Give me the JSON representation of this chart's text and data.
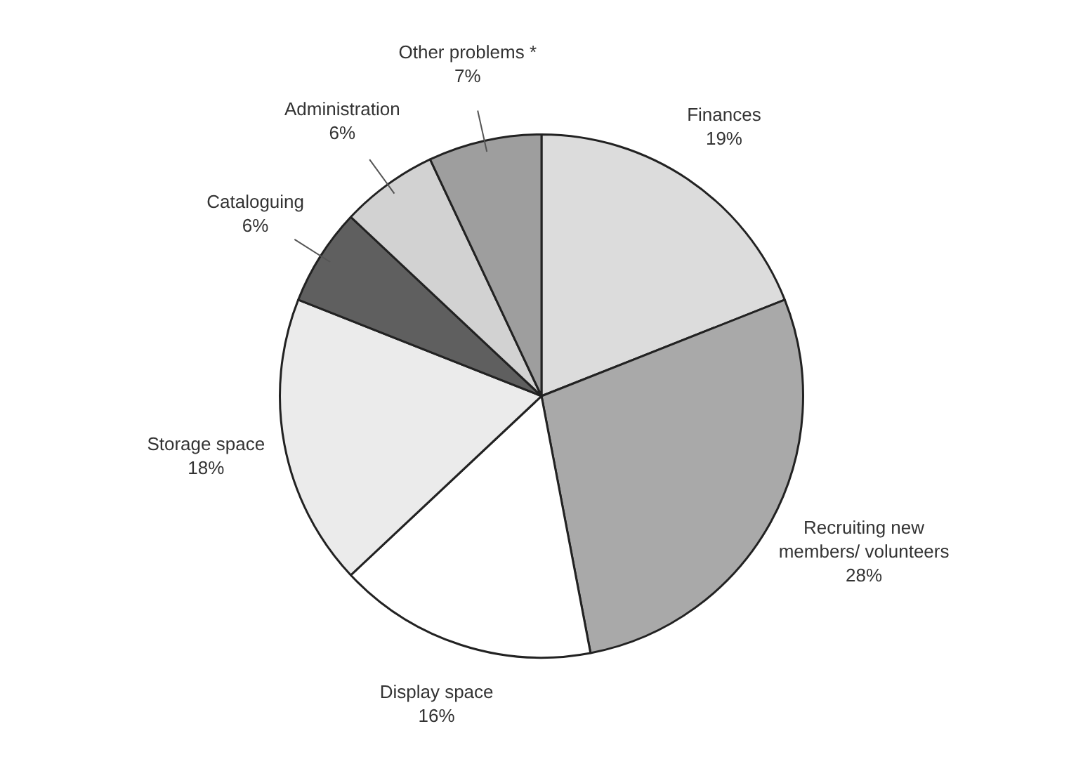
{
  "chart_data": {
    "type": "pie",
    "categories": [
      "Finances",
      "Recruiting new members/ volunteers",
      "Display space",
      "Storage space",
      "Cataloguing",
      "Administration",
      "Other problems *"
    ],
    "values": [
      19,
      28,
      16,
      18,
      6,
      6,
      7
    ],
    "value_labels": [
      "19%",
      "28%",
      "16%",
      "18%",
      "6%",
      "6%",
      "7%"
    ],
    "colors": [
      "#dcdcdc",
      "#a9a9a9",
      "#ffffff",
      "#ebebeb",
      "#5f5f5f",
      "#d2d2d2",
      "#9e9e9e"
    ],
    "legend": false
  }
}
